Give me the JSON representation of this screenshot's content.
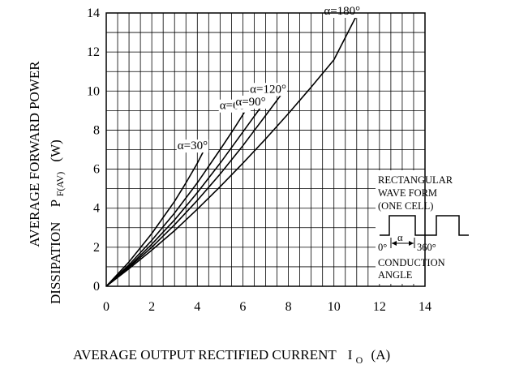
{
  "chart_data": {
    "type": "line",
    "xlabel": "AVERAGE OUTPUT RECTIFIED CURRENT",
    "xlabel_symbol": "I",
    "xlabel_sub": "O",
    "xlabel_unit": "(A)",
    "ylabel_line1": "AVERAGE FORWARD POWER",
    "ylabel_line2": "DISSIPATION",
    "ylabel_symbol": "P",
    "ylabel_sub": "F(AV)",
    "ylabel_unit": "(W)",
    "xlim": [
      0,
      14
    ],
    "ylim": [
      0,
      14
    ],
    "xticks": [
      "0",
      "2",
      "4",
      "6",
      "8",
      "10",
      "12",
      "14"
    ],
    "yticks": [
      "0",
      "2",
      "4",
      "6",
      "8",
      "10",
      "12",
      "14"
    ],
    "grid": true,
    "series": [
      {
        "name": "α=30°",
        "x": [
          0,
          1,
          2,
          3,
          3.5,
          4,
          4.35
        ],
        "y": [
          0,
          1.25,
          2.7,
          4.35,
          5.3,
          6.3,
          7.1
        ]
      },
      {
        "name": "α=60°",
        "x": [
          0,
          1,
          2,
          3,
          4,
          5,
          5.6,
          6.2
        ],
        "y": [
          0,
          1.1,
          2.35,
          3.75,
          5.3,
          7.0,
          8.05,
          9.15
        ]
      },
      {
        "name": "α=90°",
        "x": [
          0,
          1,
          2,
          3,
          4,
          5,
          6,
          6.9
        ],
        "y": [
          0,
          1.02,
          2.15,
          3.4,
          4.8,
          6.3,
          7.9,
          9.35
        ]
      },
      {
        "name": "α=120°",
        "x": [
          0,
          1,
          2,
          3,
          4,
          5,
          6,
          7,
          7.8
        ],
        "y": [
          0,
          0.97,
          2.0,
          3.15,
          4.4,
          5.75,
          7.2,
          8.75,
          10.0
        ]
      },
      {
        "name": "α=180°",
        "x": [
          0,
          1,
          2,
          3,
          4,
          5,
          6,
          7,
          8,
          9,
          10,
          11.05
        ],
        "y": [
          0,
          0.9,
          1.85,
          2.85,
          3.95,
          5.1,
          6.3,
          7.55,
          8.85,
          10.2,
          11.6,
          14.0
        ]
      }
    ],
    "inset": {
      "lines": [
        "RECTANGULAR",
        "WAVE FORM",
        "(ONE CELL)"
      ],
      "angle_start": "0°",
      "alpha": "α",
      "angle_end": "360°",
      "footer": [
        "CONDUCTION",
        "ANGLE"
      ]
    }
  }
}
